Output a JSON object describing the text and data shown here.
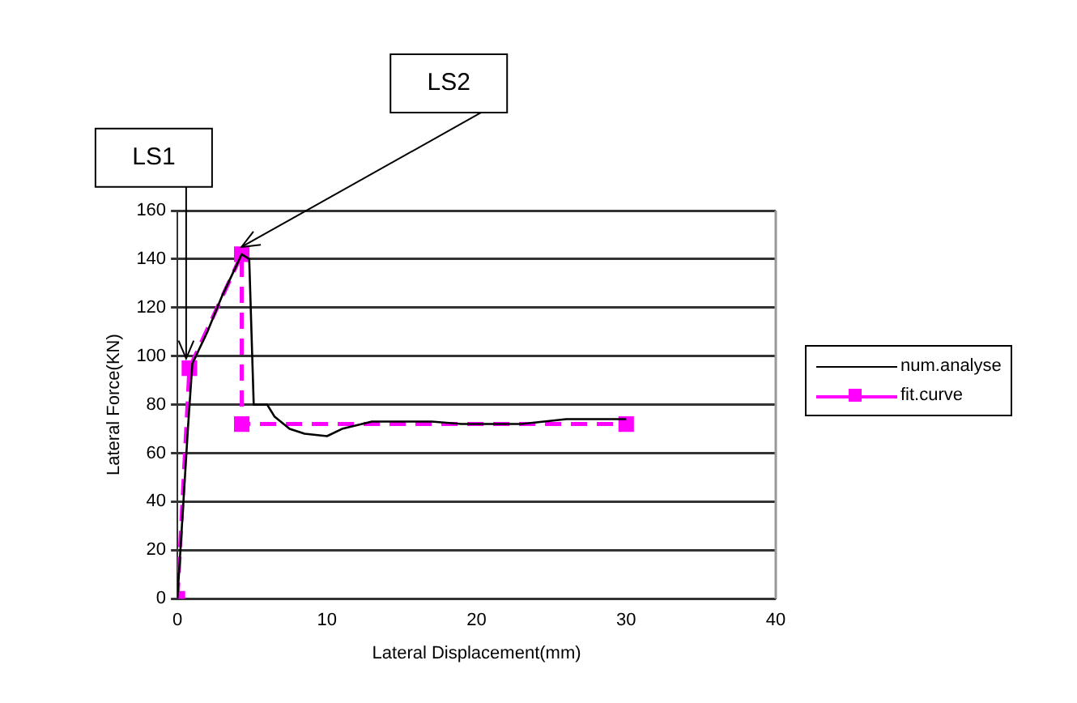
{
  "chart_data": {
    "type": "line",
    "xlabel": "Lateral Displacement(mm)",
    "ylabel": "Lateral Force(KN)",
    "xlim": [
      0,
      40
    ],
    "xticks": [
      0,
      10,
      20,
      30,
      40
    ],
    "ylim": [
      0,
      160
    ],
    "yticks": [
      0,
      20,
      40,
      60,
      80,
      100,
      120,
      140,
      160
    ],
    "grid": "y",
    "legend": "right",
    "series": [
      {
        "name": "num.analyse",
        "color": "#000000",
        "marker": "none",
        "line_style": "solid",
        "x": [
          0,
          0.3,
          0.7,
          1,
          2,
          3,
          4.3,
          4.8,
          5,
          5.1,
          6,
          6.5,
          7.5,
          8.5,
          10,
          11,
          13,
          17,
          19,
          23,
          26,
          30
        ],
        "values": [
          0,
          30,
          70,
          97,
          110,
          125,
          142,
          140,
          100,
          80,
          80,
          75,
          70,
          68,
          67,
          70,
          73,
          73,
          72,
          72,
          74,
          74
        ]
      },
      {
        "name": "fit.curve",
        "color": "#ff00ff",
        "marker": "square",
        "line_style": "dashed",
        "x": [
          0,
          0.8,
          4.3,
          4.3,
          30
        ],
        "values": [
          0,
          95,
          142,
          72,
          72
        ]
      }
    ],
    "annotations": [
      {
        "text": "LS1",
        "x": 0.8,
        "y": 97
      },
      {
        "text": "LS2",
        "x": 4.5,
        "y": 143
      }
    ]
  }
}
